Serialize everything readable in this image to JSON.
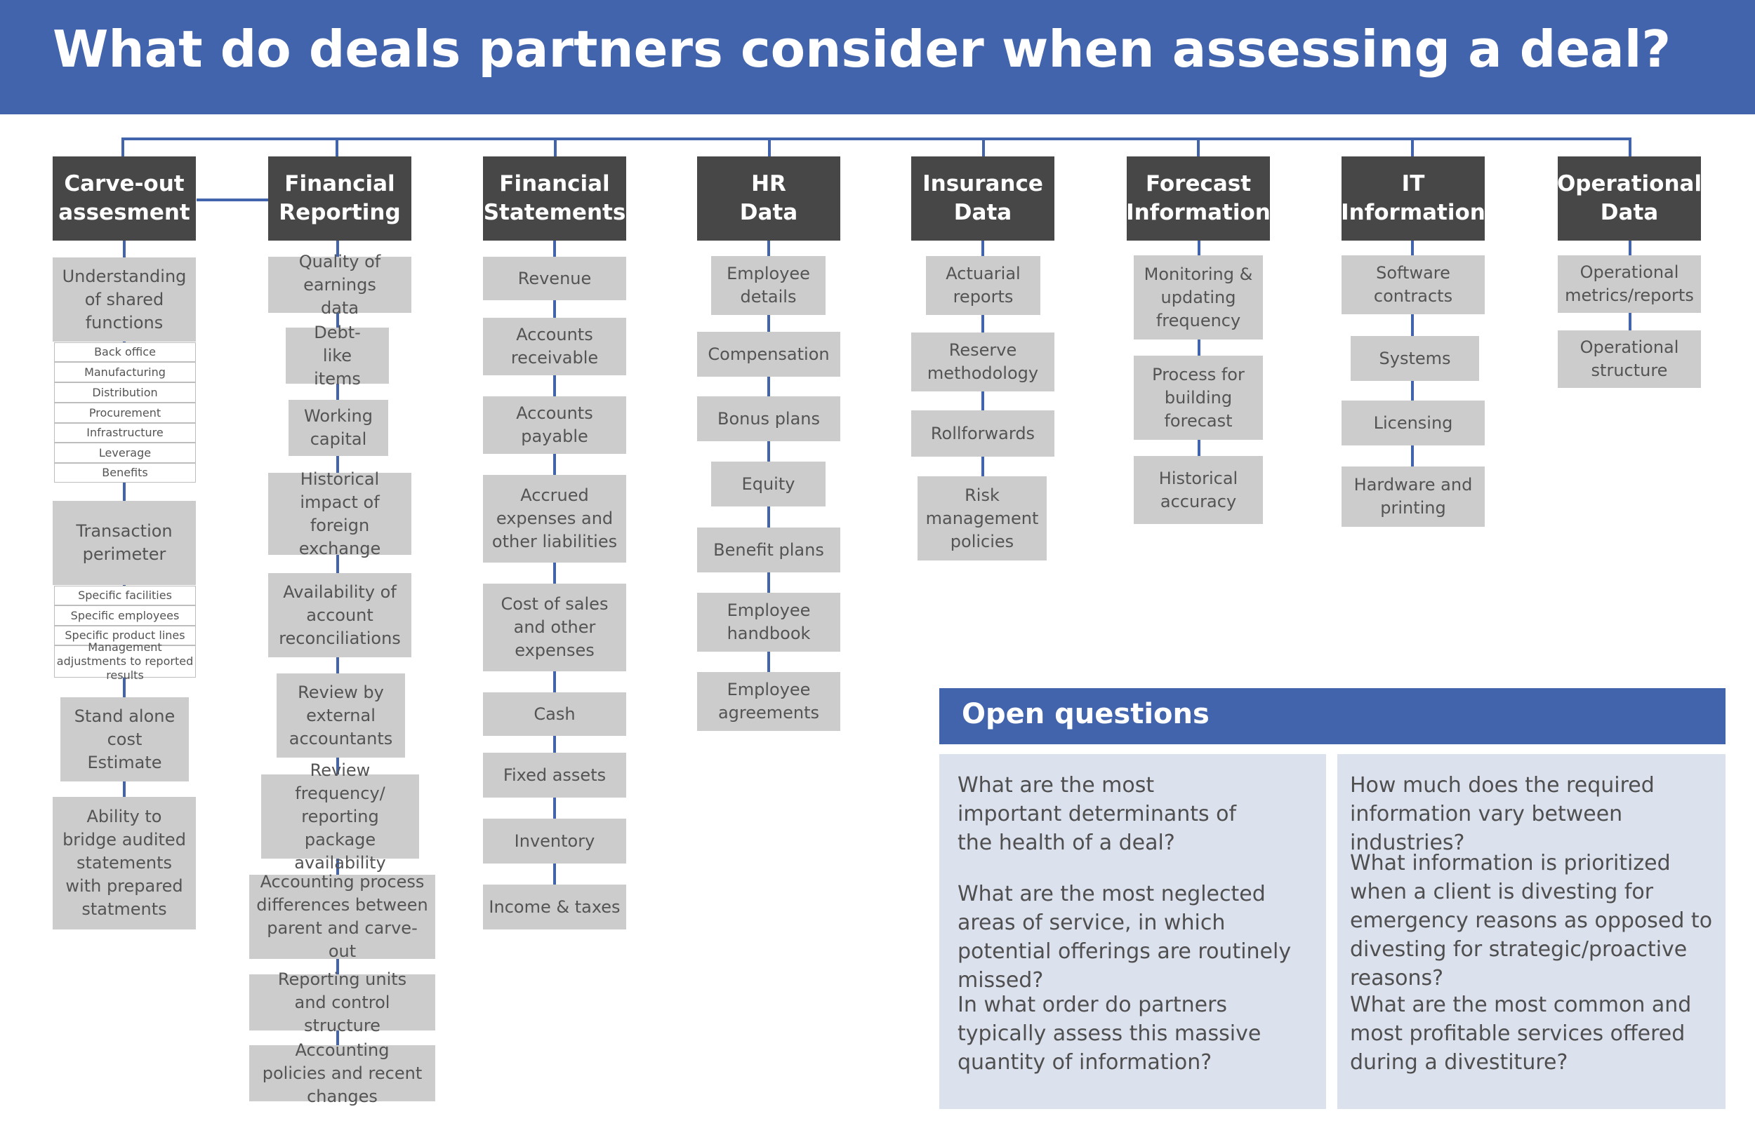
{
  "title": "What do deals partners consider when assessing a deal?",
  "columns": [
    {
      "header_line1": "Carve-out",
      "header_line2": "assesment",
      "items": [
        "Understanding of shared functions",
        "Transaction perimeter",
        "Stand alone cost Estimate",
        "Ability to bridge audited statements with prepared statments"
      ],
      "shared_functions": [
        "Back office",
        "Manufacturing",
        "Distribution",
        "Procurement",
        "Infrastructure",
        "Leverage",
        "Benefits"
      ],
      "perimeter": [
        "Specific facilities",
        "Specific employees",
        "Specific product lines",
        "Management adjustments to reported results"
      ]
    },
    {
      "header_line1": "Financial",
      "header_line2": "Reporting",
      "items": [
        "Quality of earnings data",
        "Debt-like items",
        "Working capital",
        "Historical impact of foreign exchange",
        "Availability of account reconciliations",
        "Review by external accountants",
        "Review frequency/ reporting package availability",
        "Accounting process differences between parent and carve-out",
        "Reporting units and control structure",
        "Accounting policies and recent changes"
      ]
    },
    {
      "header_line1": "Financial",
      "header_line2": "Statements",
      "items": [
        "Revenue",
        "Accounts receivable",
        "Accounts payable",
        "Accrued expenses and other liabilities",
        "Cost of sales and other expenses",
        "Cash",
        "Fixed assets",
        "Inventory",
        "Income & taxes"
      ]
    },
    {
      "header_line1": "HR",
      "header_line2": "Data",
      "items": [
        "Employee details",
        "Compensation",
        "Bonus plans",
        "Equity",
        "Benefit plans",
        "Employee handbook",
        "Employee agreements"
      ]
    },
    {
      "header_line1": "Insurance",
      "header_line2": "Data",
      "items": [
        "Actuarial reports",
        "Reserve methodology",
        "Rollforwards",
        "Risk management policies"
      ]
    },
    {
      "header_line1": "Forecast",
      "header_line2": "Information",
      "items": [
        "Monitoring & updating frequency",
        "Process for building forecast",
        "Historical accuracy"
      ]
    },
    {
      "header_line1": "IT",
      "header_line2": "Information",
      "items": [
        "Software contracts",
        "Systems",
        "Licensing",
        "Hardware and printing"
      ]
    },
    {
      "header_line1": "Operational",
      "header_line2": "Data",
      "items": [
        "Operational metrics/reports",
        "Operational structure"
      ]
    }
  ],
  "open_questions": {
    "title": "Open questions",
    "left": [
      "What are the most important determinants of the health of a deal?",
      "What are the most neglected areas of service, in which potential offerings are routinely missed?",
      "In what order do partners typically assess this massive quantity of information?"
    ],
    "right": [
      "How much does the required information vary between industries?",
      "What information is prioritized when a client is divesting for emergency reasons as opposed to divesting for strategic/proactive reasons?",
      "What are the most common and most profitable services offered during a divestiture?"
    ]
  },
  "colors": {
    "accent": "#4264ad",
    "header_box": "#474747",
    "item_box": "#cccccc",
    "panel": "#dce1ee"
  }
}
